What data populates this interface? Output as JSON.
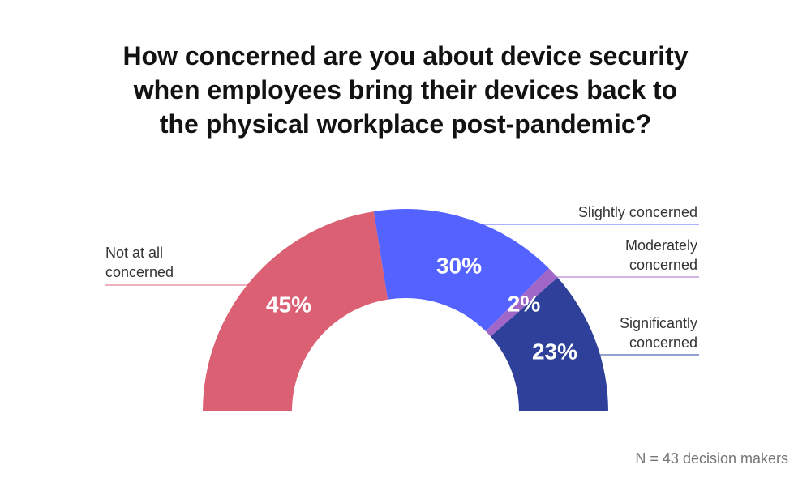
{
  "title_lines": [
    "How concerned are you about device security",
    "when employees bring their devices back to",
    "the physical workplace post-pandemic?"
  ],
  "footnote": "N = 43 decision makers",
  "chart_data": {
    "type": "pie",
    "variant": "half-donut",
    "title": "How concerned are you about device security when employees bring their devices back to the physical workplace post-pandemic?",
    "unit": "%",
    "slices": [
      {
        "label": "Not at all concerned",
        "label_lines": [
          "Not at all",
          "concerned"
        ],
        "value": 45,
        "display": "45%",
        "color": "#dc6074",
        "label_side": "left"
      },
      {
        "label": "Slightly concerned",
        "label_lines": [
          "Slightly concerned"
        ],
        "value": 30,
        "display": "30%",
        "color": "#5462ff",
        "label_side": "right"
      },
      {
        "label": "Moderately concerned",
        "label_lines": [
          "Moderately",
          "concerned"
        ],
        "value": 2,
        "display": "2%",
        "color": "#a066c8",
        "label_side": "right"
      },
      {
        "label": "Significantly concerned",
        "label_lines": [
          "Significantly",
          "concerned"
        ],
        "value": 23,
        "display": "23%",
        "color": "#2e4099",
        "label_side": "right"
      }
    ]
  }
}
